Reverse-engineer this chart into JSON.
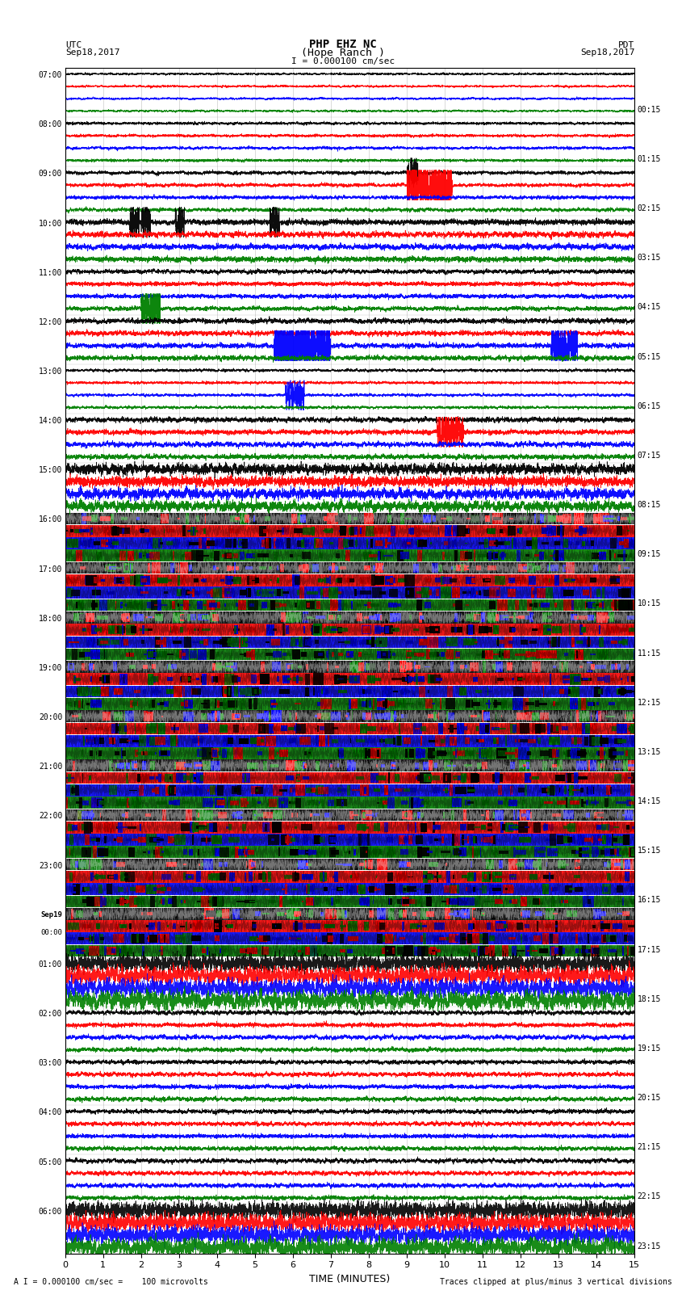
{
  "title_line1": "PHP EHZ NC",
  "title_line2": "(Hope Ranch )",
  "scale_label": "I = 0.000100 cm/sec",
  "utc_label": "UTC",
  "utc_date": "Sep18,2017",
  "pdt_label": "PDT",
  "pdt_date": "Sep18,2017",
  "xlabel": "TIME (MINUTES)",
  "footer_left": "A I = 0.000100 cm/sec =    100 microvolts",
  "footer_right": "Traces clipped at plus/minus 3 vertical divisions",
  "xlim": [
    0,
    15
  ],
  "xticks": [
    0,
    1,
    2,
    3,
    4,
    5,
    6,
    7,
    8,
    9,
    10,
    11,
    12,
    13,
    14,
    15
  ],
  "bg_color": "white",
  "plot_bg": "white",
  "left_times_utc": [
    "07:00",
    "08:00",
    "09:00",
    "10:00",
    "11:00",
    "12:00",
    "13:00",
    "14:00",
    "15:00",
    "16:00",
    "17:00",
    "18:00",
    "19:00",
    "20:00",
    "21:00",
    "22:00",
    "23:00",
    "Sep19\n00:00",
    "01:00",
    "02:00",
    "03:00",
    "04:00",
    "05:00",
    "06:00"
  ],
  "right_times_pdt": [
    "00:15",
    "01:15",
    "02:15",
    "03:15",
    "04:15",
    "05:15",
    "06:15",
    "07:15",
    "08:15",
    "09:15",
    "10:15",
    "11:15",
    "12:15",
    "13:15",
    "14:15",
    "15:15",
    "16:15",
    "17:15",
    "18:15",
    "19:15",
    "20:15",
    "21:15",
    "22:15",
    "23:15"
  ],
  "n_rows": 24,
  "trace_colors": [
    "black",
    "red",
    "blue",
    "green"
  ],
  "fig_width": 8.5,
  "fig_height": 16.13,
  "row_noise_levels": [
    0.3,
    0.4,
    0.5,
    0.8,
    0.6,
    0.7,
    0.4,
    0.7,
    0.5,
    10.0,
    10.0,
    10.0,
    10.0,
    10.0,
    10.0,
    10.0,
    10.0,
    8.0,
    3.0,
    0.6,
    0.6,
    0.6,
    0.6,
    4.0
  ]
}
